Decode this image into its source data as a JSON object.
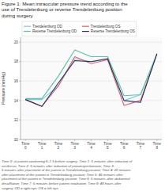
{
  "chart_data": {
    "type": "line",
    "title": "Figure 1: Mean intraocular pressure trend according to the\nuse of Trendelenburg or reverse Trendelenburg position\nduring surgery",
    "caption": "Time 0: at patient awakening 6–1 h before surgery; Time 1: 5 minutes after induction of\naesthesia; Time 2: 5 minutes after induction of pneumoperitoneum; Time 3:\n5 minutes after placement of the patient in Trendelenburg position; Time 4: 20 minutes\nafter placement of the patient in Trendelenburg position; Time 5: 45 minutes after\nplacement of the patient in Trendelenburg position; Time 6: 5 minutes after abdominal\ndesufflation; Time 7: 5 minutes before patient extubation; Time 8: 48 hours after\nsurgery. OD = right eye; OS = left eye.",
    "y_label": "Pressure (mmHg)",
    "categories": [
      "Time\n0",
      "Time\n1",
      "Time\n2",
      "Time\n3",
      "Time\n4",
      "Time\n5",
      "Time\n6",
      "Time\n7",
      "Time\n8"
    ],
    "series": [
      {
        "name": "Trendelenburg OD",
        "color": "#85c5de",
        "values": [
          14.1,
          14.1,
          15.5,
          18.3,
          18.0,
          18.2,
          14.0,
          14.6,
          18.8
        ]
      },
      {
        "name": "Trendelenburg OS",
        "color": "#e06060",
        "values": [
          14.1,
          13.4,
          15.5,
          18.5,
          17.8,
          18.2,
          13.5,
          14.0,
          18.8
        ]
      },
      {
        "name": "Reverse Trendelenburg OD",
        "color": "#50c8a0",
        "values": [
          14.2,
          14.2,
          16.5,
          19.2,
          18.5,
          18.5,
          14.5,
          14.6,
          18.8
        ]
      },
      {
        "name": "Reverse Trendelenburg OS",
        "color": "#2a2a6a",
        "values": [
          14.1,
          13.4,
          15.8,
          18.1,
          18.0,
          18.3,
          14.0,
          13.8,
          18.8
        ]
      }
    ],
    "ylim": [
      10,
      20.5
    ],
    "yticks": [
      10,
      12,
      14,
      16,
      18,
      20
    ],
    "grid": true,
    "legend": "top"
  }
}
